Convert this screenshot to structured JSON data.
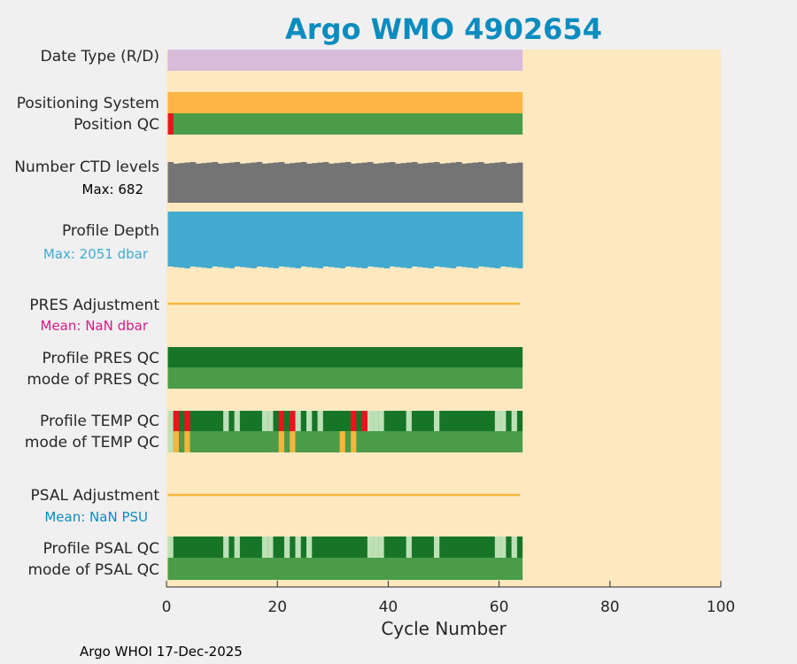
{
  "chart_data": {
    "type": "bar",
    "title": "Argo WMO 4902654",
    "xlabel": "Cycle Number",
    "xlim": [
      0,
      100
    ],
    "xticks": [
      0,
      20,
      40,
      60,
      80,
      100
    ],
    "n_cycles": 64,
    "footer": "Argo WHOI 17-Dec-2025",
    "colors": {
      "title": "#0a8cbf",
      "background": "#fde8c0",
      "date_type": "#d8bbd9",
      "positioning": "#fdb644",
      "good": "#4a9c48",
      "dark_good": "#177528",
      "light_good": "#bee0b7",
      "bad": "#e8141e",
      "questionable": "#f4b63c",
      "ctd": "#747474",
      "depth": "#43aacf",
      "adjust_line": "#f4b63c",
      "pres_mean": "#d81a84",
      "psal_mean": "#0a8cbf"
    },
    "rows": {
      "date_type": {
        "label": "Date Type (R/D)"
      },
      "positioning": {
        "label": "Positioning System"
      },
      "position_qc": {
        "label": "Position QC",
        "bad_cycles": [
          0
        ]
      },
      "ctd": {
        "label": "Number CTD levels",
        "max_label": "Max: 682",
        "max": 682
      },
      "depth": {
        "label": "Profile Depth",
        "max_label": "Max: 2051 dbar",
        "max": 2051
      },
      "pres_adj": {
        "label": "PRES Adjustment",
        "mean_label": "Mean:  NaN dbar"
      },
      "pres_qc": {
        "label": "Profile PRES QC",
        "mode_label": "mode of PRES QC"
      },
      "temp_qc": {
        "label": "Profile TEMP QC",
        "mode_label": "mode of TEMP QC",
        "profile_bad": [
          1,
          3,
          20,
          22,
          33,
          35
        ],
        "profile_light": [
          0,
          10,
          12,
          17,
          18,
          23,
          25,
          27,
          36,
          37,
          38,
          43,
          48,
          59,
          60,
          62
        ],
        "mode_light": [
          0
        ],
        "mode_questionable": [
          1,
          3,
          20,
          22,
          31,
          33
        ]
      },
      "psal_adj": {
        "label": "PSAL Adjustment",
        "mean_label": "Mean:  NaN PSU"
      },
      "psal_qc": {
        "label": "Profile PSAL QC",
        "mode_label": "mode of PSAL QC",
        "profile_light": [
          0,
          10,
          12,
          17,
          18,
          21,
          23,
          25,
          36,
          37,
          38,
          43,
          48,
          59,
          60,
          62
        ]
      }
    }
  }
}
